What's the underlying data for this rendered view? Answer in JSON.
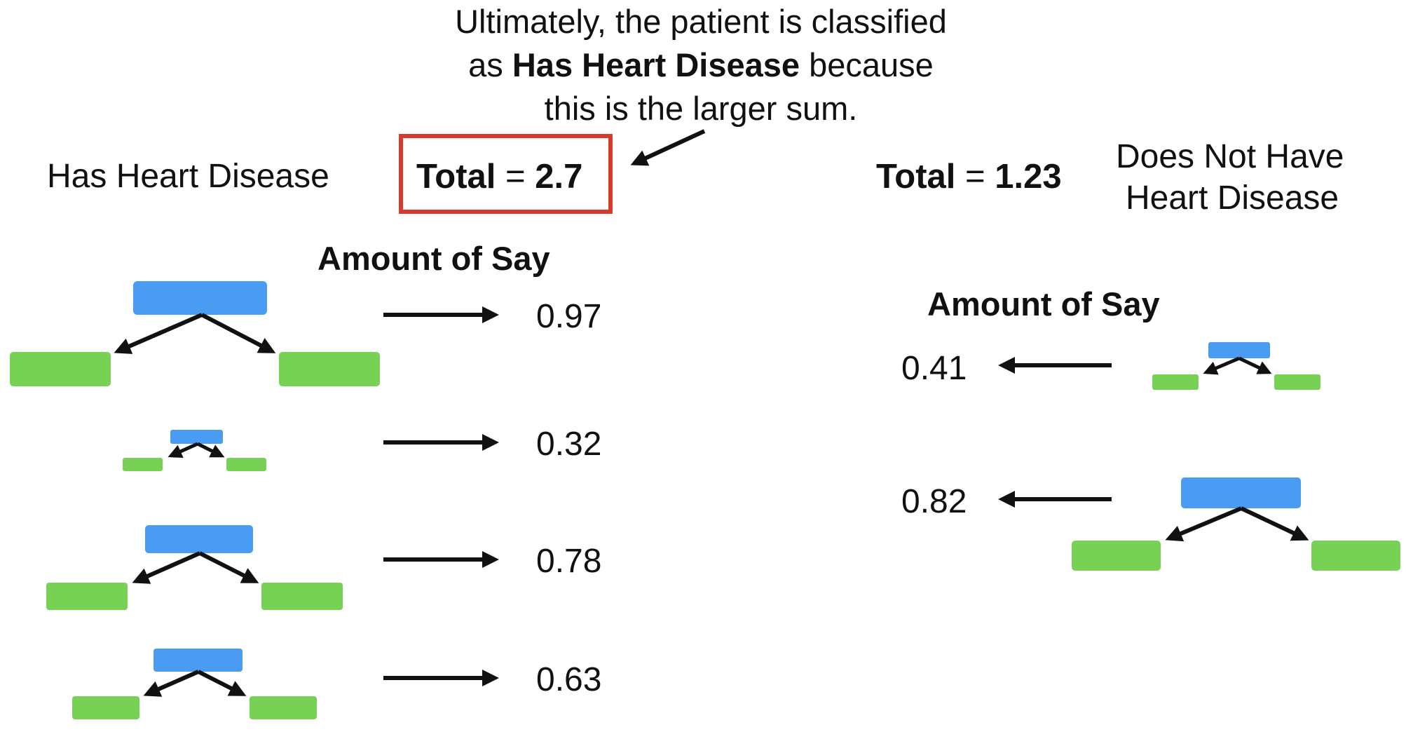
{
  "caption": {
    "line1": "Ultimately, the patient is classified",
    "line2_pre": "as ",
    "line2_bold": "Has Heart Disease",
    "line2_post": " because",
    "line3": "this is the larger sum."
  },
  "left": {
    "class_label": "Has Heart Disease",
    "total_label": "Total",
    "total_eq": " = ",
    "total_value": "2.7",
    "amount_heading": "Amount of Say",
    "stumps": [
      {
        "value": "0.97"
      },
      {
        "value": "0.32"
      },
      {
        "value": "0.78"
      },
      {
        "value": "0.63"
      }
    ]
  },
  "right": {
    "class_label_line1": "Does Not Have",
    "class_label_line2": "Heart Disease",
    "total_label": "Total",
    "total_eq": " = ",
    "total_value": "1.23",
    "amount_heading": "Amount of Say",
    "stumps": [
      {
        "value": "0.41"
      },
      {
        "value": "0.82"
      }
    ]
  },
  "colors": {
    "node_root": "#4a9cf2",
    "node_leaf": "#76d154",
    "highlight_box": "#d83a2c",
    "arrow": "#111111"
  }
}
